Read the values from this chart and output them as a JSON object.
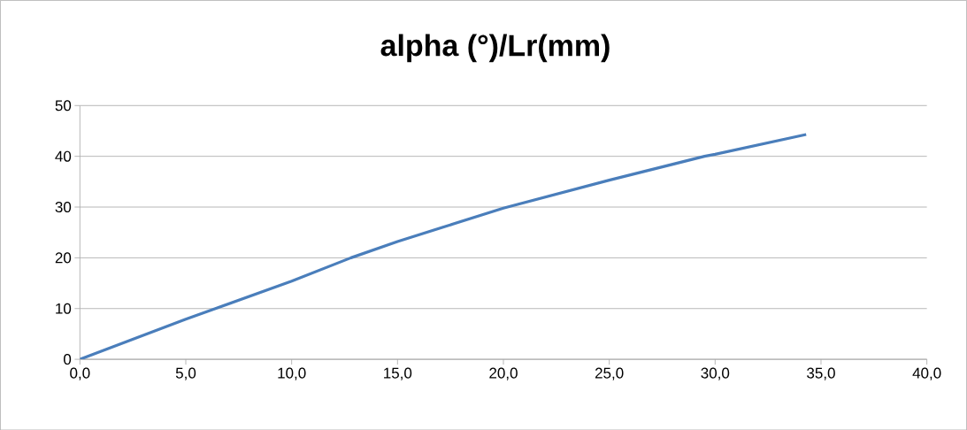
{
  "chart_data": {
    "type": "line",
    "title": "alpha (°)/Lr(mm)",
    "x": [
      0,
      5,
      6.4,
      10,
      12.8,
      15,
      20,
      25,
      29.5,
      30,
      34.3
    ],
    "series": [
      {
        "color": "#4a7ebb",
        "values": [
          0,
          7.9,
          10,
          15.4,
          20,
          23.2,
          29.8,
          35.3,
          40,
          40.4,
          44.3
        ]
      }
    ],
    "xlim": [
      0,
      40
    ],
    "ylim": [
      0,
      50
    ],
    "xticks": [
      {
        "value": 0,
        "label": "0,0"
      },
      {
        "value": 5,
        "label": "5,0"
      },
      {
        "value": 10,
        "label": "10,0"
      },
      {
        "value": 15,
        "label": "15,0"
      },
      {
        "value": 20,
        "label": "20,0"
      },
      {
        "value": 25,
        "label": "25,0"
      },
      {
        "value": 30,
        "label": "30,0"
      },
      {
        "value": 35,
        "label": "35,0"
      },
      {
        "value": 40,
        "label": "40,0"
      }
    ],
    "yticks": [
      0,
      10,
      20,
      30,
      40,
      50
    ],
    "grid": "y",
    "marker": "none",
    "line_style": "solid"
  }
}
